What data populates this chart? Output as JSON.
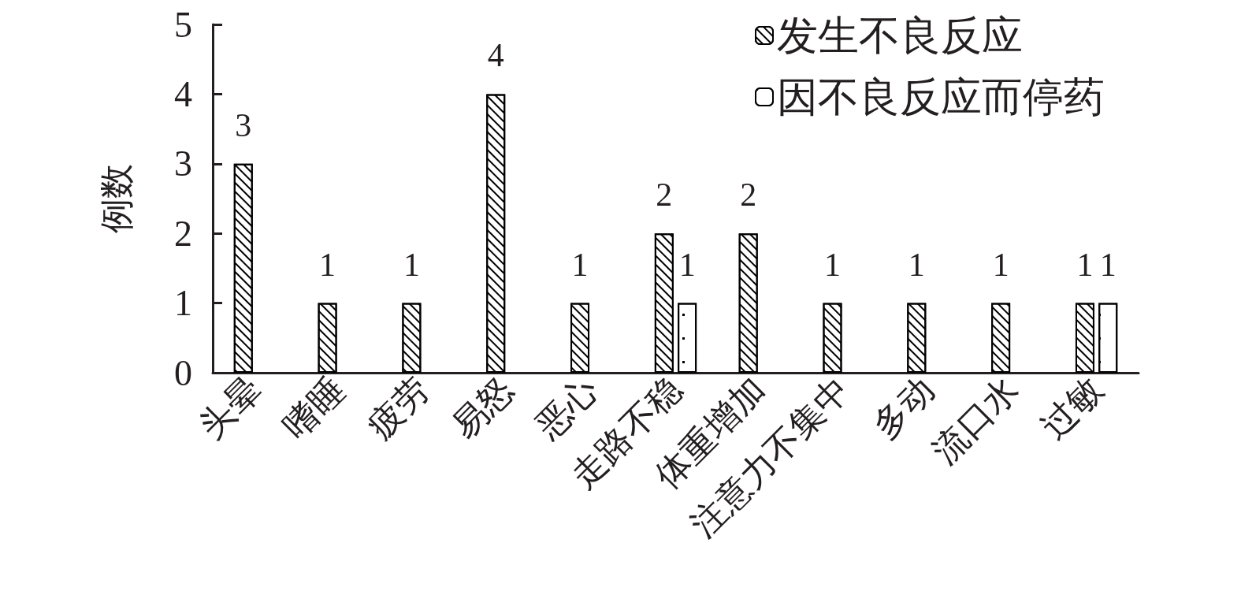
{
  "chart_data": {
    "type": "bar",
    "ylabel": "例数",
    "categories": [
      "头晕",
      "嗜睡",
      "疲劳",
      "易怒",
      "恶心",
      "走路不稳",
      "体重增加",
      "注意力不集中",
      "多动",
      "流口水",
      "过敏"
    ],
    "series": [
      {
        "name": "发生不良反应",
        "color": "#ffffff",
        "values": [
          3,
          1,
          1,
          4,
          1,
          2,
          2,
          1,
          1,
          1,
          1
        ]
      },
      {
        "name": "因不良反应而停药",
        "color": "#ffffff",
        "values": [
          null,
          null,
          null,
          null,
          null,
          1,
          null,
          null,
          null,
          null,
          1
        ]
      }
    ],
    "ylim": [
      0,
      5
    ],
    "yticks": [
      0,
      1,
      2,
      3,
      4,
      5
    ],
    "grid": false,
    "legend": "top right",
    "data_labels": true
  }
}
